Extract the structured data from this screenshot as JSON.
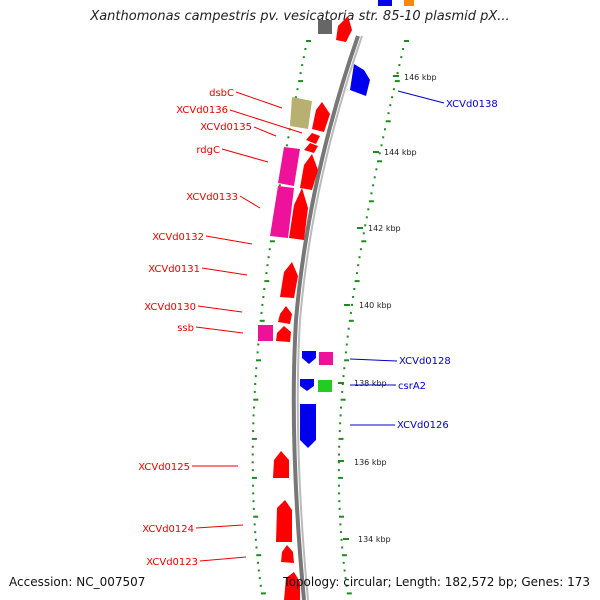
{
  "title": "Xanthomonas campestris pv. vesicatoria str. 85-10 plasmid pX...",
  "footer": {
    "accession": "Accession: NC_007507",
    "topology": "Topology: circular; Length: 182,572 bp; Genes: 173"
  },
  "scale_ticks": [
    "146 kbp",
    "144 kbp",
    "142 kbp",
    "140 kbp",
    "138 kbp",
    "136 kbp",
    "134 kbp"
  ],
  "colors": {
    "red": "#ff0000",
    "blue": "#0000ee",
    "magenta": "#ee1199",
    "olive": "#b8b070",
    "green": "#22cc22",
    "gray": "#555555",
    "orange": "#ff8800",
    "backbone": "#888888",
    "tick": "#228822"
  },
  "left_genes": [
    {
      "label": "dsbC",
      "color": "olive"
    },
    {
      "label": "XCVd0136",
      "color": "red"
    },
    {
      "label": "XCVd0135",
      "color": "red"
    },
    {
      "label": "rdgC",
      "color": "magenta"
    },
    {
      "label": "XCVd0133",
      "color": "red"
    },
    {
      "label": "XCVd0132",
      "color": "red"
    },
    {
      "label": "XCVd0131",
      "color": "red"
    },
    {
      "label": "XCVd0130",
      "color": "red"
    },
    {
      "label": "ssb",
      "color": "magenta"
    },
    {
      "label": "XCVd0125",
      "color": "red"
    },
    {
      "label": "XCVd0124",
      "color": "red"
    },
    {
      "label": "XCVd0123",
      "color": "red"
    }
  ],
  "right_genes": [
    {
      "label": "XCVd0138",
      "color": "blue"
    },
    {
      "label": "XCVd0128",
      "color": "blue"
    },
    {
      "label": "csrA2",
      "color": "blue"
    },
    {
      "label": "XCVd0126",
      "color": "blue"
    }
  ]
}
